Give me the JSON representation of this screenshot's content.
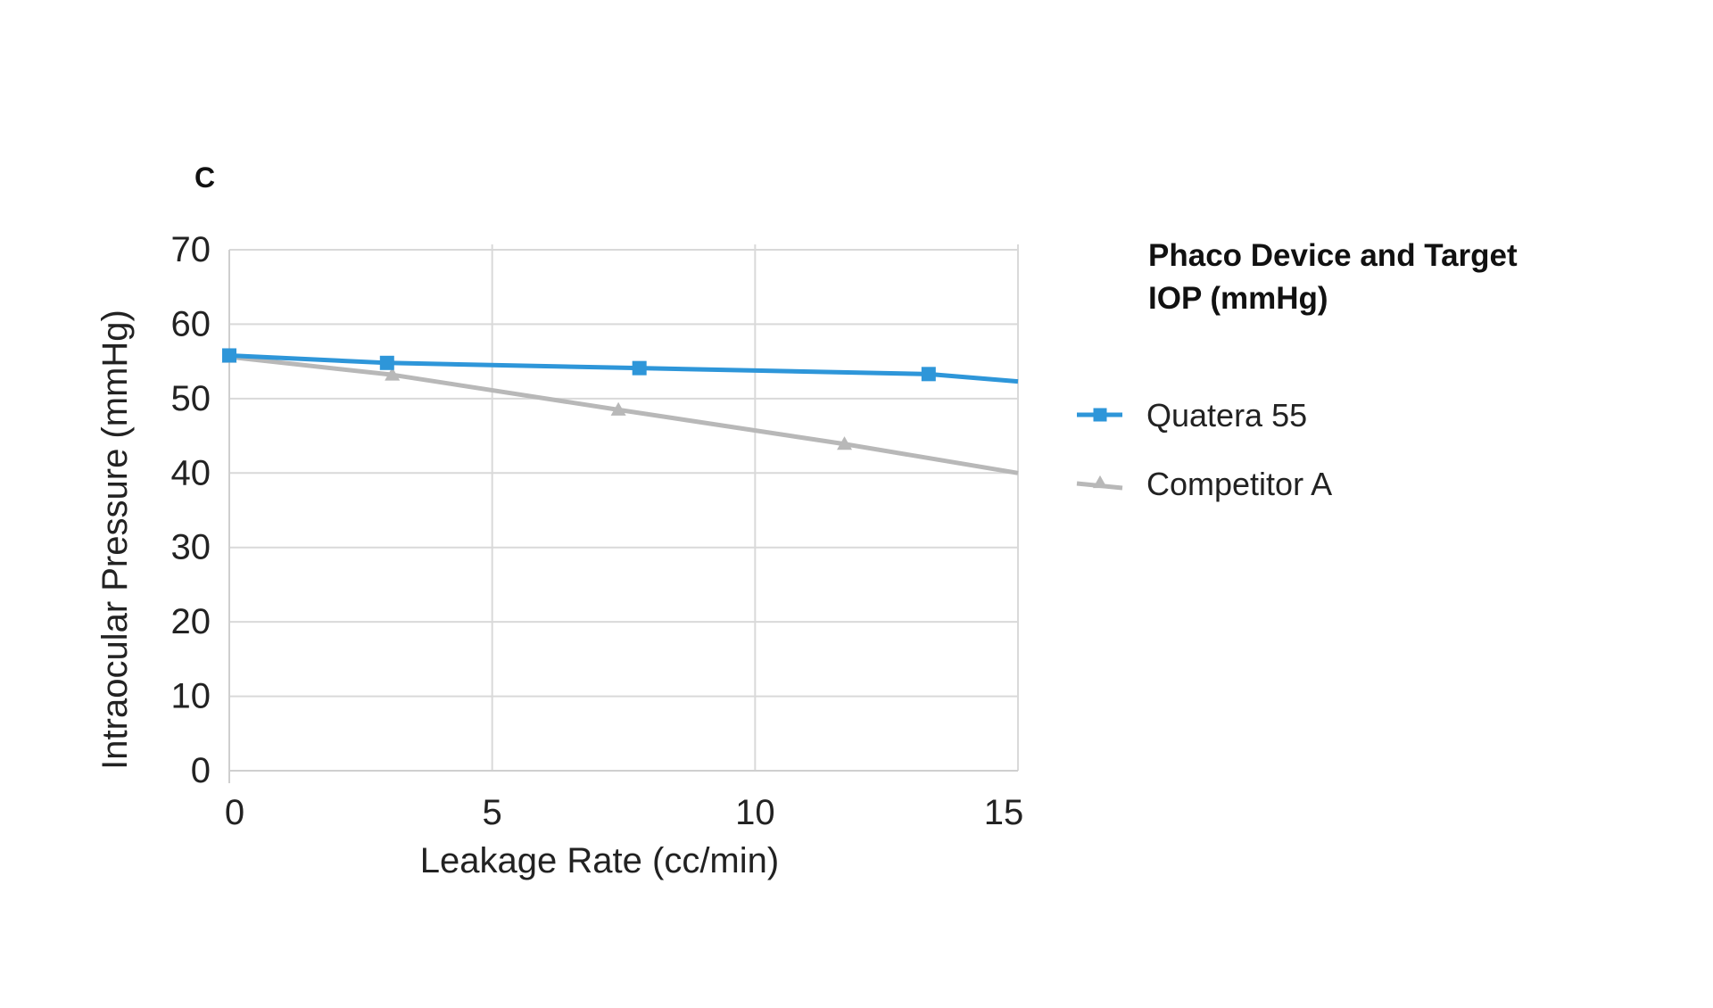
{
  "chart_data": {
    "type": "line",
    "panel_label": "C",
    "xlabel": "Leakage Rate (cc/min)",
    "ylabel": "Intraocular Pressure (mmHg)",
    "xlim": [
      0,
      15
    ],
    "ylim": [
      0,
      70
    ],
    "x_ticks": [
      0,
      5,
      10,
      15
    ],
    "x_tick_labels": [
      "0",
      "5",
      "10",
      "15"
    ],
    "y_ticks": [
      0,
      10,
      20,
      30,
      40,
      50,
      60,
      70
    ],
    "y_tick_labels": [
      "0",
      "10",
      "20",
      "30",
      "40",
      "50",
      "60",
      "70"
    ],
    "grid": true,
    "legend_title": "Phaco Device and Target IOP (mmHg)",
    "legend_title_lines": [
      "Phaco Device and Target",
      "IOP (mmHg)"
    ],
    "legend_position": "right",
    "series": [
      {
        "name": "Quatera 55",
        "color": "#2e96d9",
        "marker": "square",
        "x": [
          0,
          3,
          7.8,
          13.3,
          15
        ],
        "y": [
          55.8,
          54.8,
          54.1,
          53.3,
          52.3
        ],
        "marker_mask": [
          true,
          true,
          true,
          true,
          false
        ]
      },
      {
        "name": "Competitor A",
        "color": "#b8b8b8",
        "marker": "triangle",
        "x": [
          0,
          3.1,
          7.4,
          11.7,
          15
        ],
        "y": [
          55.6,
          53.2,
          48.5,
          43.9,
          40.0
        ],
        "marker_mask": [
          true,
          true,
          true,
          true,
          false
        ]
      }
    ]
  }
}
